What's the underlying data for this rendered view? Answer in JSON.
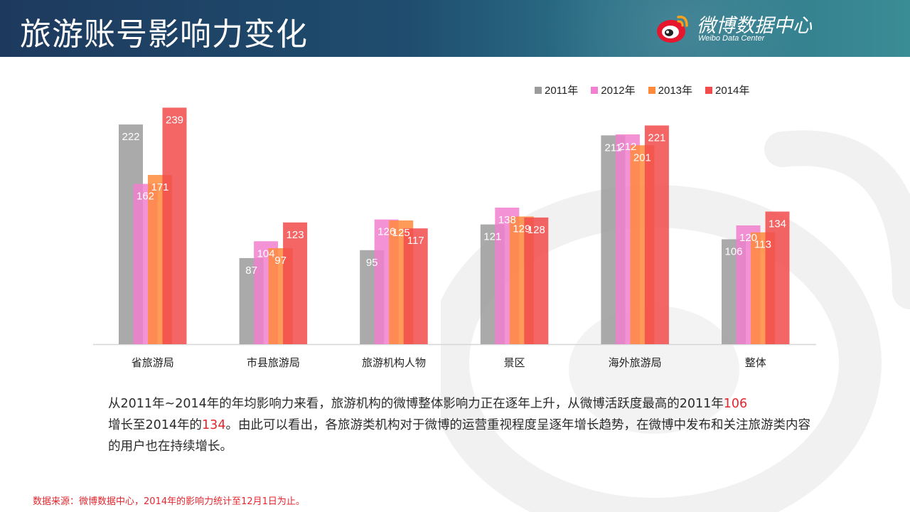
{
  "header": {
    "title": "旅游账号影响力变化",
    "logo_text": "微博数据中心",
    "logo_subtext": "Weibo Data Center"
  },
  "colors": {
    "header_start": "#1d3a5e",
    "header_end": "#3a8c95",
    "highlight": "#e5262d"
  },
  "chart_data": {
    "type": "bar",
    "categories": [
      "省旅游局",
      "市县旅游局",
      "旅游机构人物",
      "景区",
      "海外旅游局",
      "整体"
    ],
    "series": [
      {
        "name": "2011年",
        "color": "#9b9b9b",
        "values": [
          222,
          87,
          95,
          121,
          211,
          106
        ]
      },
      {
        "name": "2012年",
        "color": "#f27fcf",
        "values": [
          162,
          104,
          126,
          138,
          212,
          120
        ]
      },
      {
        "name": "2013年",
        "color": "#ff8a3c",
        "values": [
          171,
          97,
          125,
          129,
          201,
          113
        ]
      },
      {
        "name": "2014年",
        "color": "#f24b4b",
        "values": [
          239,
          123,
          117,
          128,
          221,
          134
        ]
      }
    ],
    "ylim": [
      0,
      240
    ],
    "grid": false,
    "legend_position": "top-right"
  },
  "description": {
    "part1": "从2011年~2014年的年均影响力来看，旅游机构的微博整体影响力正在逐年上升，从微博活跃度最高的2011年",
    "value1": "106",
    "part2": "增长至2014年的",
    "value2": "134",
    "part3": "。由此可以看出，各旅游类机构对于微博的运营重视程度呈逐年增长趋势，在微博中发布和关注旅游类内容的用户也在持续增长。"
  },
  "source": "数据来源：微博数据中心，2014年的影响力统计至12月1日为止。"
}
